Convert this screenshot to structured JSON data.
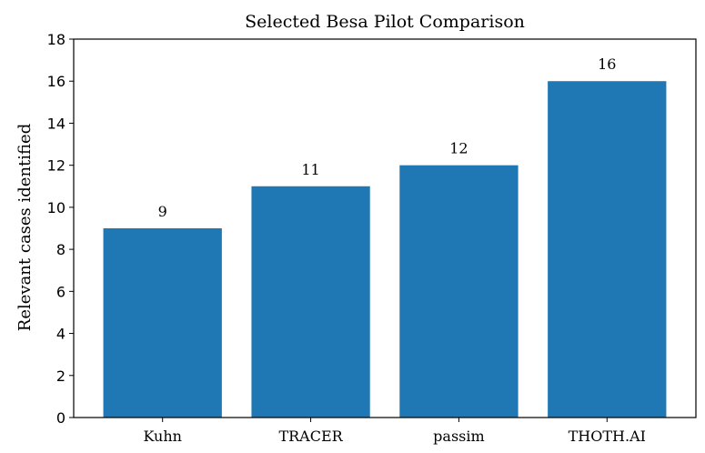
{
  "chart_data": {
    "type": "bar",
    "title": "Selected Besa Pilot Comparison",
    "xlabel": "",
    "ylabel": "Relevant cases identified",
    "categories": [
      "Kuhn",
      "TRACER",
      "passim",
      "THOTH.AI"
    ],
    "values": [
      9,
      11,
      12,
      16
    ],
    "data_labels": [
      "9",
      "11",
      "12",
      "16"
    ],
    "ylim": [
      0,
      18
    ],
    "yticks": [
      0,
      2,
      4,
      6,
      8,
      10,
      12,
      14,
      16,
      18
    ],
    "ytick_labels": [
      "0",
      "2",
      "4",
      "6",
      "8",
      "10",
      "12",
      "14",
      "16",
      "18"
    ],
    "grid": false,
    "legend": "none",
    "colors": {
      "bar": "#1f77b4",
      "axis": "#000000",
      "text": "#000000"
    }
  }
}
